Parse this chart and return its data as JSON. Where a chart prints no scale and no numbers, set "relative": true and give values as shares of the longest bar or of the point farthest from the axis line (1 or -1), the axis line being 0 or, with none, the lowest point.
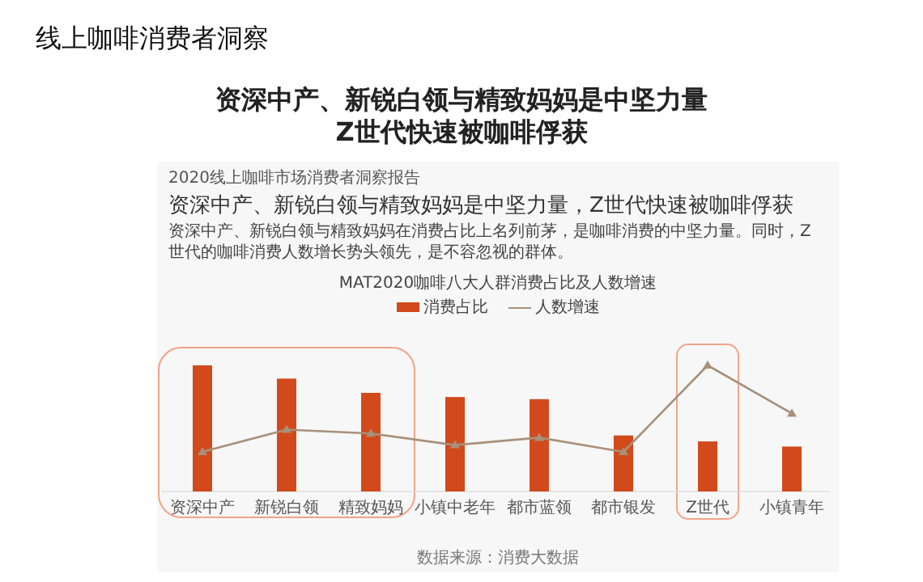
{
  "chart_data": {
    "type": "bar",
    "title": "MAT2020咖啡八大人群消费占比及人数增速",
    "relative": true,
    "legend": "top",
    "categories": [
      "资深中产",
      "新锐白领",
      "精致妈妈",
      "小镇中老年",
      "都市蓝领",
      "都市银发",
      "Z世代",
      "小镇青年"
    ],
    "series": [
      {
        "name": "消费占比",
        "color": "#d24a1c",
        "values": [
          1,
          0.895,
          0.782,
          0.749,
          0.732,
          0.444,
          0.397,
          0.356
        ]
      },
      {
        "name": "人数增速",
        "type": "line",
        "color": "#a8907a",
        "marker": "triangle",
        "values": [
          0.314,
          0.49,
          0.46,
          0.368,
          0.427,
          0.314,
          1,
          0.619
        ]
      }
    ],
    "annotations": [
      "线上咖啡消费者洞察",
      "资深中产、新锐白领与精致妈妈是中坚力量\nZ世代快速被咖啡俘获",
      "2020线上咖啡市场消费者洞察报告",
      "资深中产、新锐白领与精致妈妈是中坚力量，Z世代快速被咖啡俘获",
      "资深中产、新锐白领与精致妈妈在消费占比上名列前茅，是咖啡消费的中坚力量。同时，Z世代的咖啡消费人数增长势头领先，是不容忽视的群体。",
      "数据来源：消费大数据"
    ]
  }
}
